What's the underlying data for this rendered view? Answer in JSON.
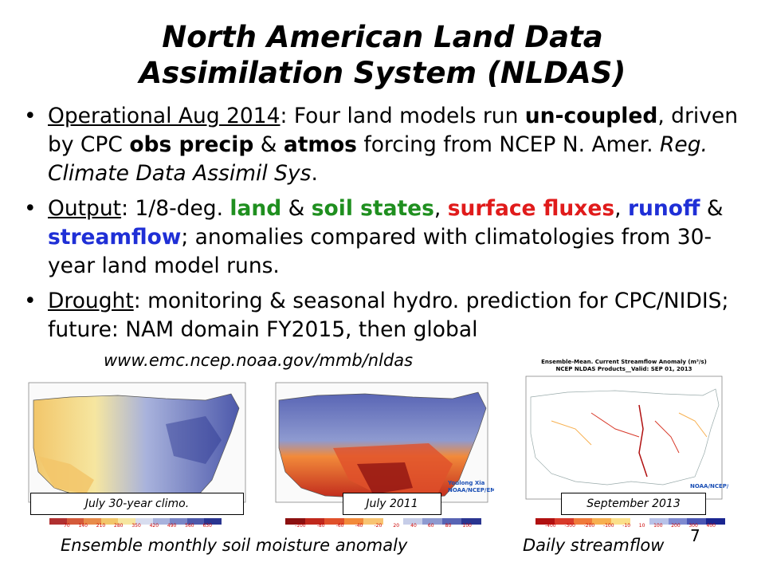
{
  "slide": {
    "title_line1": "North American Land Data",
    "title_line2": "Assimilation System (NLDAS)",
    "page_number": "7"
  },
  "bullets": [
    {
      "lead": "Operational Aug 2014",
      "after_lead": ":  Four land models run ",
      "b1": "un-coupled",
      "t2": ", driven by CPC ",
      "b2": "obs precip",
      "t3": " & ",
      "b3": "atmos",
      "t4": " forcing from NCEP N. Amer. ",
      "i1": "Reg. Climate Data Assimil Sys",
      "t5": "."
    },
    {
      "lead": "Output",
      "t1": ":  1/8-deg. ",
      "g1": "land",
      "t2": " & ",
      "g2": "soil states",
      "t3": ", ",
      "r1": "surface fluxes",
      "t4": ", ",
      "bl1": "runoff",
      "t5": " & ",
      "bl2": "streamflow",
      "t6": "; anomalies compared with climatologies from 30-year land model runs."
    },
    {
      "lead": "Drought",
      "t1": ":  monitoring & seasonal hydro. prediction for CPC/NIDIS; future: NAM domain FY2015, then global"
    }
  ],
  "url": "www.emc.ncep.noaa.gov/mmb/nldas",
  "maps": [
    {
      "label": "July 30-year climo.",
      "colorbar_ticks": [
        "70",
        "140",
        "210",
        "280",
        "350",
        "420",
        "490",
        "560",
        "630"
      ],
      "colors": [
        "#b03030",
        "#d45a3a",
        "#e88c4a",
        "#f2c66a",
        "#f6e6a0",
        "#d8ddef",
        "#a8b2dc",
        "#7a86c6",
        "#4d59ab",
        "#2a3590"
      ]
    },
    {
      "label": "July 2011",
      "colorbar_ticks": [
        "-100",
        "-80",
        "-60",
        "-40",
        "-20",
        "20",
        "40",
        "60",
        "80",
        "100"
      ],
      "colors": [
        "#8b1010",
        "#c0281c",
        "#e0502a",
        "#f28a3a",
        "#f8c472",
        "#ffffff",
        "#c6cde8",
        "#8e9ad0",
        "#5864b4",
        "#2a3590"
      ],
      "watermark_line1": "Youlong Xia",
      "watermark_line2": "NOAA/NCEP/EMC"
    },
    {
      "label": "September 2013",
      "title_line1": "Ensemble-Mean. Current Streamflow Anomaly (m³/s)",
      "title_line2": "NCEP NLDAS Products__Valid: SEP 01, 2013",
      "colorbar_ticks": [
        "-400",
        "-300",
        "-200",
        "-100",
        "-10",
        "10",
        "100",
        "200",
        "300",
        "400"
      ],
      "colors": [
        "#b01010",
        "#d83a2a",
        "#f07a3a",
        "#f7b050",
        "#fbe08a",
        "#ffffff",
        "#b8c2e8",
        "#7e8ad0",
        "#4a56b4",
        "#1a2590"
      ],
      "watermark": "NOAA/NCEP/EMC"
    }
  ],
  "captions": {
    "left": "Ensemble monthly soil moisture anomaly",
    "right": "Daily streamflow"
  }
}
